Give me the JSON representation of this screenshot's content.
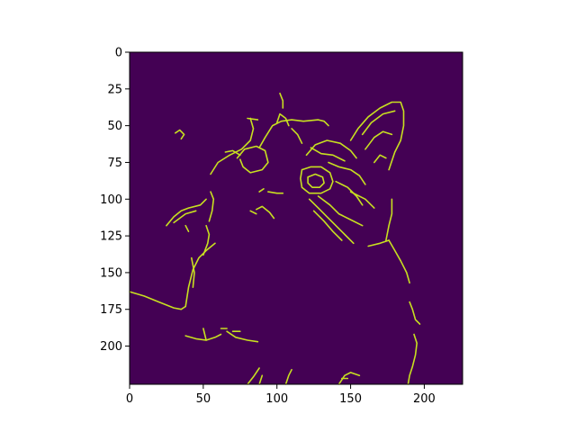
{
  "chart_data": {
    "type": "heatmap",
    "title": "",
    "xlabel": "",
    "ylabel": "",
    "xlim": [
      0,
      226
    ],
    "ylim": [
      226,
      0
    ],
    "x_ticks": [
      0,
      50,
      100,
      150,
      200
    ],
    "y_ticks": [
      0,
      25,
      50,
      75,
      100,
      125,
      150,
      175,
      200
    ],
    "colors": {
      "background": "#440154",
      "edge": "#c8e020"
    },
    "content": "binary edge map",
    "edge_paths": [
      [
        [
          0,
          163
        ],
        [
          10,
          166
        ],
        [
          20,
          170
        ],
        [
          30,
          174
        ],
        [
          35,
          175
        ],
        [
          38,
          173
        ]
      ],
      [
        [
          38,
          173
        ],
        [
          40,
          160
        ],
        [
          43,
          148
        ],
        [
          47,
          140
        ],
        [
          52,
          135
        ],
        [
          58,
          130
        ]
      ],
      [
        [
          52,
          118
        ],
        [
          54,
          124
        ],
        [
          53,
          130
        ],
        [
          50,
          138
        ]
      ],
      [
        [
          42,
          140
        ],
        [
          44,
          150
        ],
        [
          43,
          160
        ]
      ],
      [
        [
          25,
          118
        ],
        [
          30,
          112
        ],
        [
          35,
          108
        ],
        [
          40,
          106
        ],
        [
          48,
          104
        ],
        [
          52,
          100
        ]
      ],
      [
        [
          30,
          116
        ],
        [
          38,
          110
        ],
        [
          45,
          108
        ]
      ],
      [
        [
          55,
          95
        ],
        [
          57,
          100
        ],
        [
          56,
          108
        ],
        [
          54,
          115
        ]
      ],
      [
        [
          55,
          83
        ],
        [
          60,
          75
        ],
        [
          68,
          70
        ],
        [
          76,
          66
        ],
        [
          82,
          60
        ],
        [
          84,
          52
        ],
        [
          82,
          45
        ]
      ],
      [
        [
          80,
          45
        ],
        [
          87,
          46
        ]
      ],
      [
        [
          73,
          72
        ],
        [
          78,
          66
        ],
        [
          86,
          64
        ],
        [
          92,
          67
        ],
        [
          94,
          75
        ],
        [
          90,
          80
        ],
        [
          82,
          82
        ],
        [
          77,
          78
        ],
        [
          75,
          73
        ]
      ],
      [
        [
          65,
          68
        ],
        [
          70,
          67
        ],
        [
          75,
          70
        ]
      ],
      [
        [
          88,
          65
        ],
        [
          92,
          58
        ],
        [
          97,
          50
        ],
        [
          103,
          47
        ],
        [
          110,
          46
        ],
        [
          118,
          47
        ],
        [
          128,
          46
        ],
        [
          132,
          47
        ],
        [
          135,
          50
        ]
      ],
      [
        [
          102,
          28
        ],
        [
          104,
          33
        ],
        [
          104,
          38
        ]
      ],
      [
        [
          117,
          80
        ],
        [
          123,
          78
        ],
        [
          130,
          78
        ],
        [
          136,
          82
        ],
        [
          138,
          88
        ],
        [
          136,
          93
        ],
        [
          130,
          96
        ],
        [
          122,
          96
        ],
        [
          117,
          92
        ],
        [
          116,
          86
        ],
        [
          117,
          80
        ]
      ],
      [
        [
          121,
          85
        ],
        [
          126,
          83
        ],
        [
          131,
          85
        ],
        [
          132,
          89
        ],
        [
          129,
          92
        ],
        [
          124,
          92
        ],
        [
          121,
          89
        ],
        [
          121,
          85
        ]
      ],
      [
        [
          120,
          70
        ],
        [
          126,
          63
        ],
        [
          134,
          60
        ],
        [
          143,
          62
        ],
        [
          150,
          67
        ],
        [
          154,
          72
        ]
      ],
      [
        [
          123,
          65
        ],
        [
          130,
          69
        ],
        [
          138,
          70
        ],
        [
          146,
          74
        ]
      ],
      [
        [
          135,
          75
        ],
        [
          142,
          78
        ],
        [
          150,
          80
        ],
        [
          156,
          84
        ],
        [
          160,
          90
        ]
      ],
      [
        [
          140,
          88
        ],
        [
          148,
          92
        ],
        [
          154,
          98
        ],
        [
          158,
          104
        ]
      ],
      [
        [
          122,
          100
        ],
        [
          128,
          106
        ],
        [
          134,
          112
        ],
        [
          140,
          118
        ],
        [
          146,
          124
        ],
        [
          152,
          130
        ]
      ],
      [
        [
          125,
          108
        ],
        [
          132,
          115
        ],
        [
          138,
          122
        ],
        [
          144,
          128
        ]
      ],
      [
        [
          128,
          98
        ],
        [
          136,
          104
        ],
        [
          142,
          110
        ],
        [
          150,
          114
        ],
        [
          158,
          118
        ]
      ],
      [
        [
          150,
          60
        ],
        [
          155,
          52
        ],
        [
          162,
          44
        ],
        [
          170,
          38
        ],
        [
          178,
          34
        ],
        [
          184,
          34
        ],
        [
          186,
          40
        ],
        [
          186,
          50
        ],
        [
          184,
          60
        ],
        [
          180,
          68
        ],
        [
          176,
          80
        ]
      ],
      [
        [
          158,
          56
        ],
        [
          164,
          48
        ],
        [
          172,
          42
        ],
        [
          180,
          40
        ]
      ],
      [
        [
          160,
          66
        ],
        [
          166,
          58
        ],
        [
          172,
          54
        ],
        [
          178,
          56
        ]
      ],
      [
        [
          166,
          75
        ],
        [
          170,
          70
        ],
        [
          174,
          72
        ]
      ],
      [
        [
          150,
          95
        ],
        [
          160,
          100
        ],
        [
          166,
          106
        ]
      ],
      [
        [
          178,
          100
        ],
        [
          178,
          110
        ],
        [
          176,
          118
        ],
        [
          174,
          128
        ]
      ],
      [
        [
          162,
          132
        ],
        [
          170,
          130
        ],
        [
          176,
          128
        ]
      ],
      [
        [
          176,
          128
        ],
        [
          180,
          135
        ],
        [
          184,
          142
        ],
        [
          188,
          150
        ],
        [
          190,
          157
        ]
      ],
      [
        [
          38,
          118
        ],
        [
          40,
          122
        ]
      ],
      [
        [
          31,
          55
        ],
        [
          34,
          53
        ],
        [
          37,
          56
        ],
        [
          35,
          59
        ]
      ],
      [
        [
          88,
          95
        ],
        [
          91,
          93
        ]
      ],
      [
        [
          94,
          95
        ],
        [
          100,
          96
        ],
        [
          104,
          96
        ]
      ],
      [
        [
          100,
          48
        ],
        [
          102,
          42
        ],
        [
          106,
          45
        ],
        [
          108,
          50
        ]
      ],
      [
        [
          110,
          52
        ],
        [
          114,
          56
        ],
        [
          117,
          62
        ]
      ],
      [
        [
          86,
          107
        ],
        [
          90,
          105
        ],
        [
          95,
          109
        ],
        [
          98,
          113
        ]
      ],
      [
        [
          82,
          108
        ],
        [
          86,
          110
        ]
      ],
      [
        [
          38,
          193
        ],
        [
          45,
          195
        ],
        [
          52,
          196
        ],
        [
          58,
          194
        ],
        [
          62,
          192
        ]
      ],
      [
        [
          50,
          188
        ],
        [
          52,
          196
        ]
      ],
      [
        [
          62,
          188
        ],
        [
          66,
          188
        ]
      ],
      [
        [
          66,
          190
        ],
        [
          72,
          194
        ],
        [
          80,
          196
        ],
        [
          87,
          197
        ]
      ],
      [
        [
          70,
          190
        ],
        [
          75,
          190
        ]
      ],
      [
        [
          190,
          170
        ],
        [
          192,
          175
        ],
        [
          194,
          182
        ],
        [
          197,
          185
        ]
      ],
      [
        [
          193,
          192
        ],
        [
          195,
          198
        ],
        [
          194,
          206
        ],
        [
          192,
          214
        ],
        [
          190,
          220
        ],
        [
          189,
          226
        ]
      ],
      [
        [
          80,
          226
        ],
        [
          84,
          221
        ],
        [
          88,
          215
        ]
      ],
      [
        [
          88,
          226
        ],
        [
          90,
          220
        ]
      ],
      [
        [
          106,
          226
        ],
        [
          108,
          220
        ],
        [
          110,
          216
        ]
      ],
      [
        [
          142,
          226
        ],
        [
          146,
          220
        ],
        [
          150,
          218
        ],
        [
          156,
          220
        ]
      ],
      [
        [
          144,
          222
        ],
        [
          148,
          222
        ]
      ]
    ]
  }
}
